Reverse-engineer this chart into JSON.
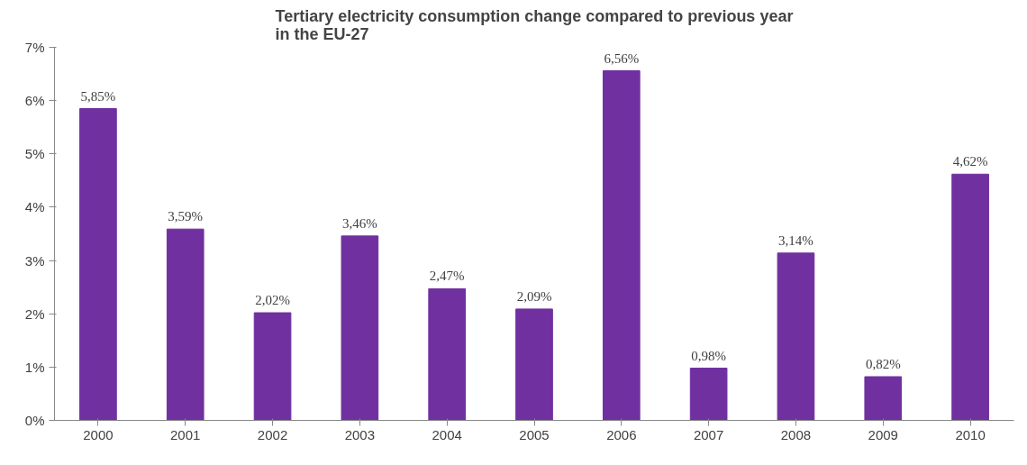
{
  "chart_data": {
    "type": "bar",
    "title": "Tertiary electricity consumption change compared to previous year\nin the EU-27",
    "categories": [
      "2000",
      "2001",
      "2002",
      "2003",
      "2004",
      "2005",
      "2006",
      "2007",
      "2008",
      "2009",
      "2010"
    ],
    "values": [
      5.85,
      3.59,
      2.02,
      3.46,
      2.47,
      2.09,
      6.56,
      0.98,
      3.14,
      0.82,
      4.62
    ],
    "value_labels": [
      "5,85%",
      "3,59%",
      "2,02%",
      "3,46%",
      "2,47%",
      "2,09%",
      "6,56%",
      "0,98%",
      "3,14%",
      "0,82%",
      "4,62%"
    ],
    "color": "#7030a0",
    "ylim": [
      0,
      7
    ],
    "yticks": [
      {
        "value": 0,
        "label": "0%"
      },
      {
        "value": 1,
        "label": "1%"
      },
      {
        "value": 2,
        "label": "2%"
      },
      {
        "value": 3,
        "label": "3%"
      },
      {
        "value": 4,
        "label": "4%"
      },
      {
        "value": 5,
        "label": "5%"
      },
      {
        "value": 6,
        "label": "6%"
      },
      {
        "value": 7,
        "label": "7%"
      }
    ],
    "grid": false
  }
}
